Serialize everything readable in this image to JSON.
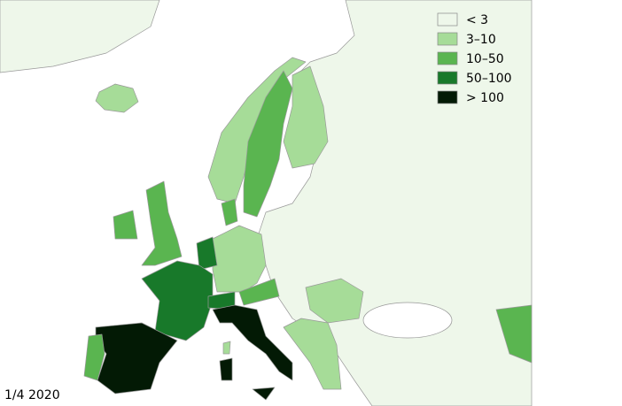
{
  "legend": [
    {
      "label": "< 3",
      "color": "#eef7ea"
    },
    {
      "label": "3–10",
      "color": "#a6dc98"
    },
    {
      "label": "10–50",
      "color": "#5ab550"
    },
    {
      "label": "50–100",
      "color": "#18792a"
    },
    {
      "label": "> 100",
      "color": "#031a05"
    }
  ],
  "date": "1/4 2020"
}
